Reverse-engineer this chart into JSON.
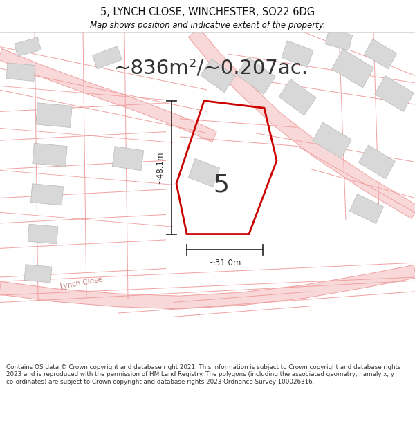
{
  "title": "5, LYNCH CLOSE, WINCHESTER, SO22 6DG",
  "subtitle": "Map shows position and indicative extent of the property.",
  "area_text": "~836m²/~0.207ac.",
  "label_5": "5",
  "dim_vertical": "~48.1m",
  "dim_horizontal": "~31.0m",
  "street_label": "Lynch Close",
  "footer": "Contains OS data © Crown copyright and database right 2021. This information is subject to Crown copyright and database rights 2023 and is reproduced with the permission of HM Land Registry. The polygons (including the associated geometry, namely x, y co-ordinates) are subject to Crown copyright and database rights 2023 Ordnance Survey 100026316.",
  "bg_color": "#ffffff",
  "map_bg": "#ffffff",
  "road_line_color": "#f0a0a0",
  "road_fill_color": "#f8d8d8",
  "building_face_color": "#d8d8d8",
  "building_edge_color": "#b0b0b0",
  "property_color": "#cc0000",
  "dim_color": "#333333",
  "title_color": "#111111",
  "footer_color": "#333333",
  "street_text_color": "#c08080",
  "header_separator": "#cccccc"
}
